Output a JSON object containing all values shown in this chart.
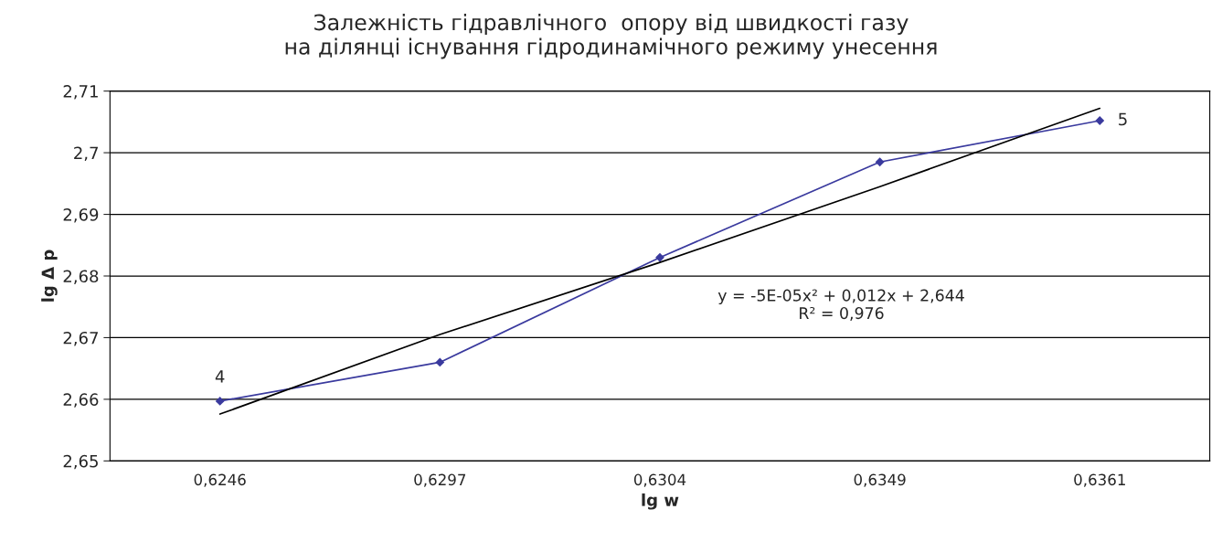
{
  "chart_data": {
    "type": "line",
    "title": "Залежність гідравлічного  опору від швидкості газу\nна ділянці існування гідродинамічного режиму унесення",
    "xlabel": "lg w",
    "ylabel": "lg Δ p",
    "categories": [
      "0,6246",
      "0,6297",
      "0,6304",
      "0,6349",
      "0,6361"
    ],
    "series": [
      {
        "color": "#3a3a9e",
        "marker": "diamond",
        "values": [
          2.6597,
          2.666,
          2.683,
          2.6985,
          2.7052
        ]
      },
      {
        "color": "#000000",
        "marker": "none",
        "values": [
          2.6576,
          2.6705,
          2.6822,
          2.6945,
          2.7072
        ]
      }
    ],
    "ylim": [
      2.65,
      2.71
    ],
    "yticks": [
      {
        "value": 2.65,
        "label": "2,65"
      },
      {
        "value": 2.66,
        "label": "2,66"
      },
      {
        "value": 2.67,
        "label": "2,67"
      },
      {
        "value": 2.68,
        "label": "2,68"
      },
      {
        "value": 2.69,
        "label": "2,69"
      },
      {
        "value": 2.7,
        "label": "2,7"
      },
      {
        "value": 2.71,
        "label": "2,71"
      }
    ],
    "grid": "y",
    "legend": false,
    "annotations": [
      {
        "text": "4",
        "x": "0,6246",
        "y": 2.6597
      },
      {
        "text": "5",
        "x": "0,6361",
        "y": 2.7052
      },
      "y = -5E-05x² + 0,012x + 2,644\nR² = 0,976"
    ]
  }
}
